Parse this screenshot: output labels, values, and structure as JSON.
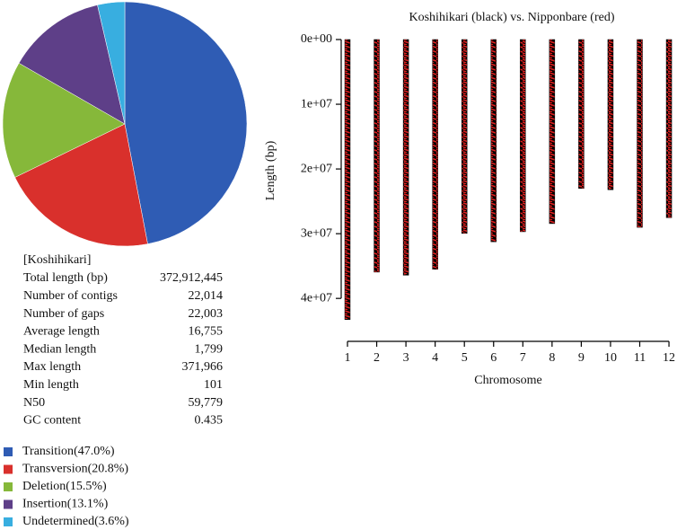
{
  "chart_data": [
    {
      "type": "pie",
      "categories": [
        "Transition",
        "Transversion",
        "Deletion",
        "Insertion",
        "Undetermined"
      ],
      "values": [
        47.0,
        20.8,
        15.5,
        13.1,
        3.6
      ],
      "value_labels": [
        "(47.0%)",
        "(20.8%)",
        "(15.5%)",
        "(13.1%)",
        "(3.6%)"
      ],
      "colors": [
        "#2f5cb4",
        "#d9302c",
        "#86b83a",
        "#5e3f88",
        "#38aee0"
      ]
    },
    {
      "type": "chromosome",
      "title": "Koshihikari (black) vs. Nipponbare (red)",
      "x_label": "Chromosome",
      "y_label": "Length (bp)",
      "categories": [
        "1",
        "2",
        "3",
        "4",
        "5",
        "6",
        "7",
        "8",
        "9",
        "10",
        "11",
        "12"
      ],
      "values": [
        43270923,
        35937250,
        36413819,
        35502694,
        29958434,
        31248787,
        29697621,
        28443022,
        23012720,
        23207287,
        29021106,
        27531856
      ],
      "colors": [
        "#000000",
        "#e02020"
      ],
      "ylim": [
        0,
        44000000
      ],
      "y_inverted": true,
      "yticks": [
        {
          "value": 0,
          "label": "0e+00"
        },
        {
          "value": 10000000,
          "label": "1e+07"
        },
        {
          "value": 20000000,
          "label": "2e+07"
        },
        {
          "value": 30000000,
          "label": "3e+07"
        },
        {
          "value": 40000000,
          "label": "4e+07"
        }
      ]
    }
  ],
  "table": {
    "title": "[Koshihikari]",
    "rows": [
      [
        "Total length (bp)",
        "372,912,445"
      ],
      [
        "Number of contigs",
        "22,014"
      ],
      [
        "Number of gaps",
        "22,003"
      ],
      [
        "Average length",
        "16,755"
      ],
      [
        "Median length",
        "1,799"
      ],
      [
        "Max length",
        "371,966"
      ],
      [
        "Min length",
        "101"
      ],
      [
        "N50",
        "59,779"
      ],
      [
        "GC content",
        "0.435"
      ]
    ]
  }
}
